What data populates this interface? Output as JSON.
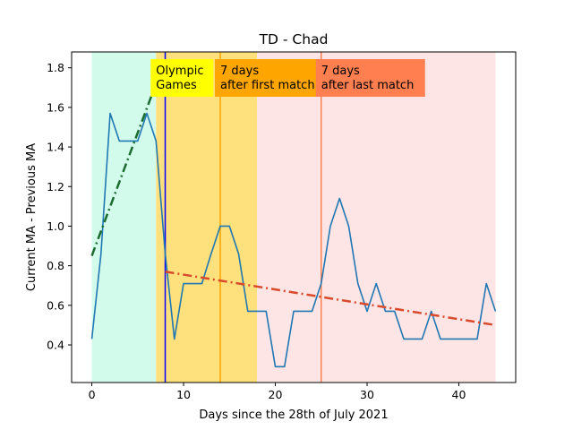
{
  "chart_data": {
    "type": "line",
    "title": "TD - Chad",
    "xlabel": "Days since the 28th of July 2021",
    "ylabel": "Current MA - Previous MA",
    "xlim": [
      -2.2,
      46.2
    ],
    "ylim": [
      0.21,
      1.88
    ],
    "x_ticks": [
      0,
      10,
      20,
      30,
      40
    ],
    "y_ticks": [
      0.4,
      0.6,
      0.8,
      1.0,
      1.2,
      1.4,
      1.6,
      1.8
    ],
    "y_tick_labels": [
      "0.4",
      "0.6",
      "0.8",
      "1.0",
      "1.2",
      "1.4",
      "1.6",
      "1.8"
    ],
    "grid": false,
    "shaded_regions": [
      {
        "x0": 0,
        "x1": 7,
        "color": "#d2fbec"
      },
      {
        "x0": 7,
        "x1": 18,
        "color": "#fee17c"
      },
      {
        "x0": 18,
        "x1": 44,
        "color": "#fee5e5"
      }
    ],
    "vertical_lines": [
      {
        "x": 8,
        "color": "#0000ff"
      },
      {
        "x": 14,
        "color": "#ffa500"
      },
      {
        "x": 25,
        "color": "#ff7f50"
      }
    ],
    "annotations": [
      {
        "lines": [
          "Olympic",
          "Games"
        ],
        "x": 7,
        "y": 1.82,
        "bg": "#ffff00"
      },
      {
        "lines": [
          "7 days",
          "after first match"
        ],
        "x": 14,
        "y": 1.82,
        "bg": "#ffa500"
      },
      {
        "lines": [
          "7 days",
          "after last match"
        ],
        "x": 25,
        "y": 1.82,
        "bg": "#ff7f50"
      }
    ],
    "series": [
      {
        "color": "#1f77b4",
        "style": "solid",
        "x": [
          0,
          1,
          2,
          3,
          4,
          5,
          6,
          7,
          8,
          9,
          10,
          11,
          12,
          13,
          14,
          15,
          16,
          17,
          18,
          19,
          20,
          21,
          22,
          23,
          24,
          25,
          26,
          27,
          28,
          29,
          30,
          31,
          32,
          33,
          34,
          35,
          36,
          37,
          38,
          39,
          40,
          41,
          42,
          43,
          44
        ],
        "y": [
          0.43,
          0.86,
          1.57,
          1.43,
          1.43,
          1.43,
          1.57,
          1.43,
          0.86,
          0.43,
          0.71,
          0.71,
          0.71,
          0.86,
          1.0,
          1.0,
          0.86,
          0.57,
          0.57,
          0.57,
          0.29,
          0.29,
          0.57,
          0.57,
          0.57,
          0.71,
          1.0,
          1.14,
          1.0,
          0.71,
          0.57,
          0.71,
          0.57,
          0.57,
          0.43,
          0.43,
          0.43,
          0.57,
          0.43,
          0.43,
          0.43,
          0.43,
          0.43,
          0.71,
          0.57
        ]
      },
      {
        "color": "#1b6b2e",
        "style": "dashdot",
        "x": [
          0,
          7
        ],
        "y": [
          0.85,
          1.72
        ]
      },
      {
        "color": "#d84a2b",
        "style": "dashdot",
        "x": [
          8,
          44
        ],
        "y": [
          0.77,
          0.5
        ]
      }
    ]
  }
}
